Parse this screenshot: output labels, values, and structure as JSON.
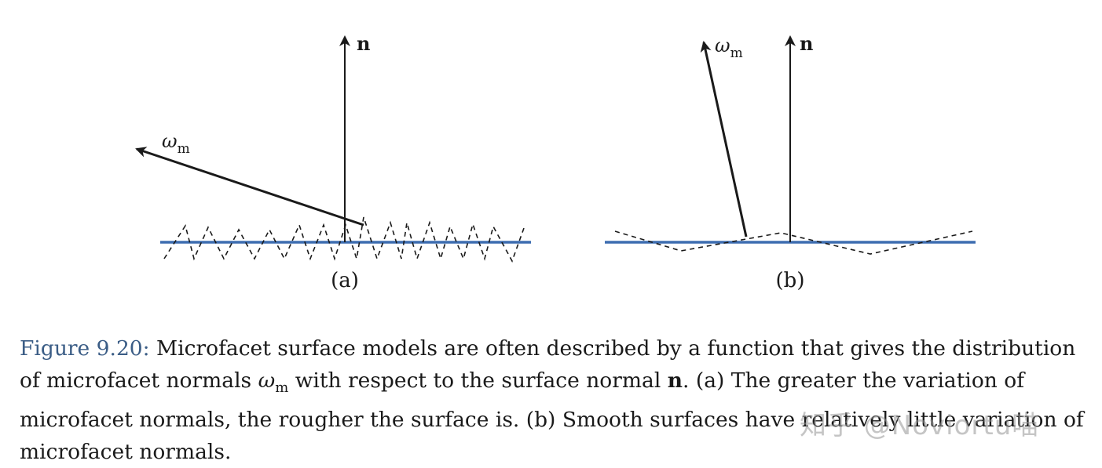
{
  "figure": {
    "panel_a": {
      "label": "(a)",
      "normal_label": "n",
      "microfacet_label": "ω",
      "microfacet_sub": "m"
    },
    "panel_b": {
      "label": "(b)",
      "normal_label": "n",
      "microfacet_label": "ω",
      "microfacet_sub": "m"
    },
    "colors": {
      "surface": "#3d6db0",
      "arrows": "#1a1a1a",
      "caption_ref": "#3b5d86"
    }
  },
  "caption": {
    "ref": "Figure 9.20:",
    "t1": " Microfacet surface models are often described by a function that gives the distribution of microfacet normals ",
    "w": "ω",
    "w_sub": "m",
    "t2": " with respect to the surface normal ",
    "n": "n",
    "t3": ". (a) The greater the variation of microfacet normals, the rougher the surface is. (b) Smooth surfaces have relatively little variation of microfacet normals."
  },
  "watermark": "知乎 @Noviortu喵"
}
